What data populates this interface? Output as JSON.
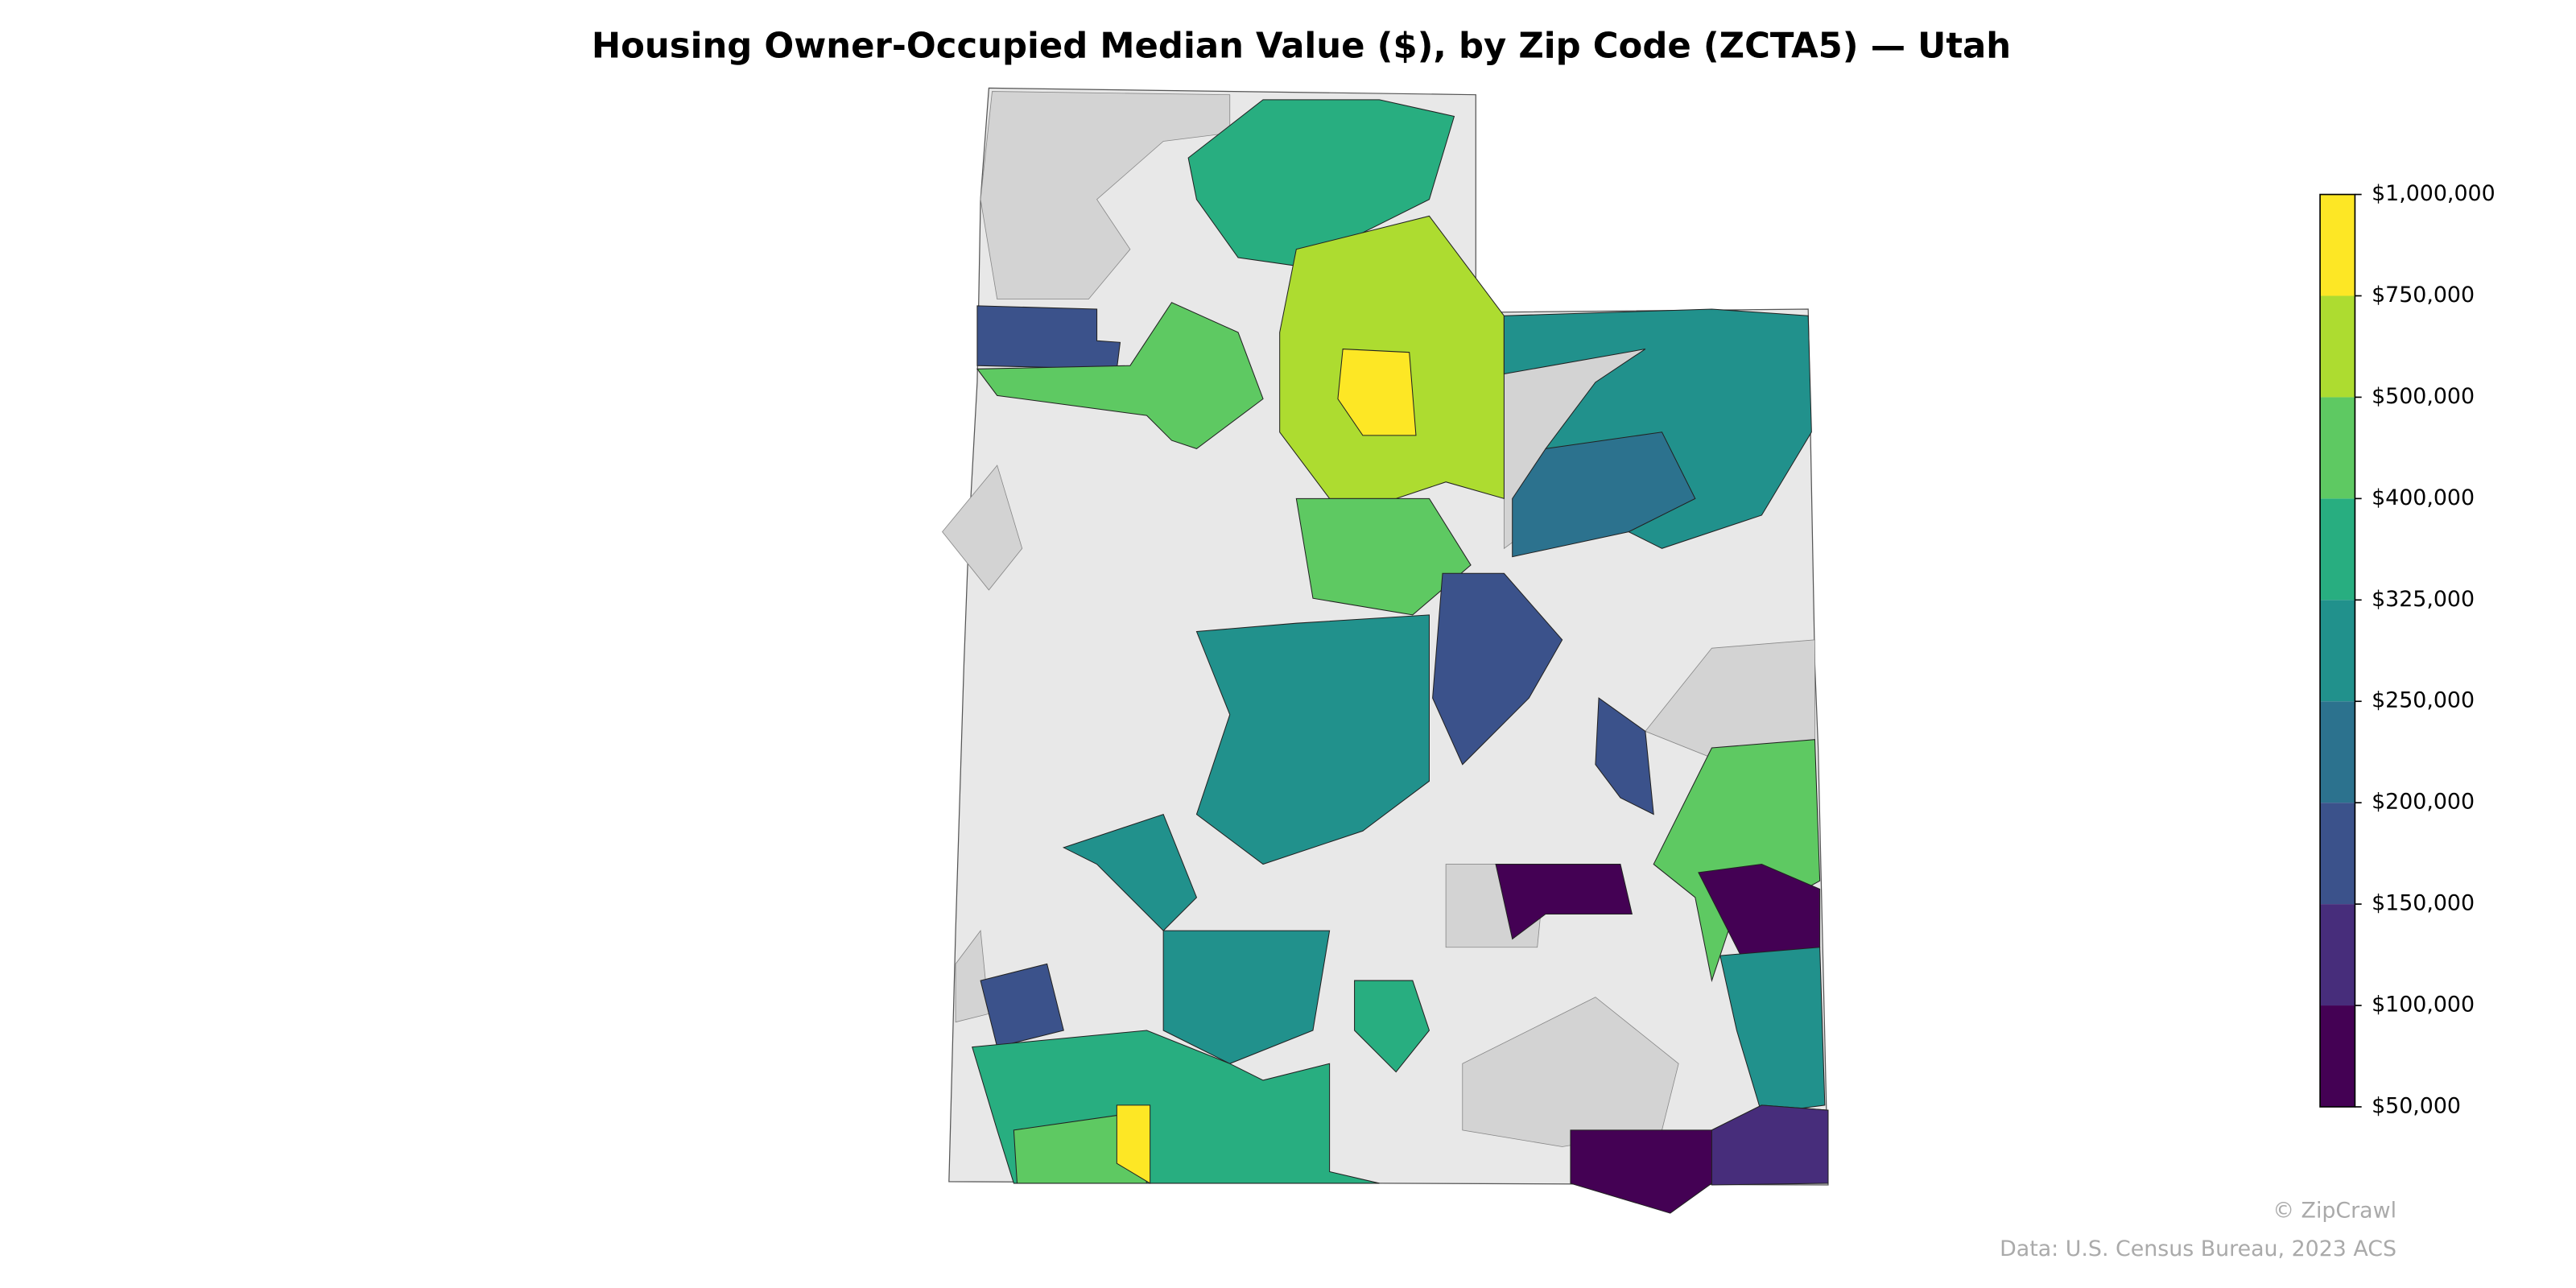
{
  "chart_data": {
    "type": "choropleth",
    "title": "Housing Owner-Occupied Median Value ($), by Zip Code (ZCTA5) — Utah",
    "colorbar": {
      "ticks": [
        {
          "value": 50000,
          "label": "$50,000"
        },
        {
          "value": 100000,
          "label": "$100,000"
        },
        {
          "value": 150000,
          "label": "$150,000"
        },
        {
          "value": 200000,
          "label": "$200,000"
        },
        {
          "value": 250000,
          "label": "$250,000"
        },
        {
          "value": 325000,
          "label": "$325,000"
        },
        {
          "value": 400000,
          "label": "$400,000"
        },
        {
          "value": 500000,
          "label": "$500,000"
        },
        {
          "value": 750000,
          "label": "$750,000"
        },
        {
          "value": 1000000,
          "label": "$1,000,000"
        }
      ],
      "colors": [
        "#440154",
        "#472d7b",
        "#3b528b",
        "#2c728e",
        "#21918c",
        "#28ae80",
        "#5ec962",
        "#addc30",
        "#fde725"
      ]
    },
    "credit": "© ZipCrawl",
    "source": "Data: U.S. Census Bureau, 2023 ACS"
  }
}
